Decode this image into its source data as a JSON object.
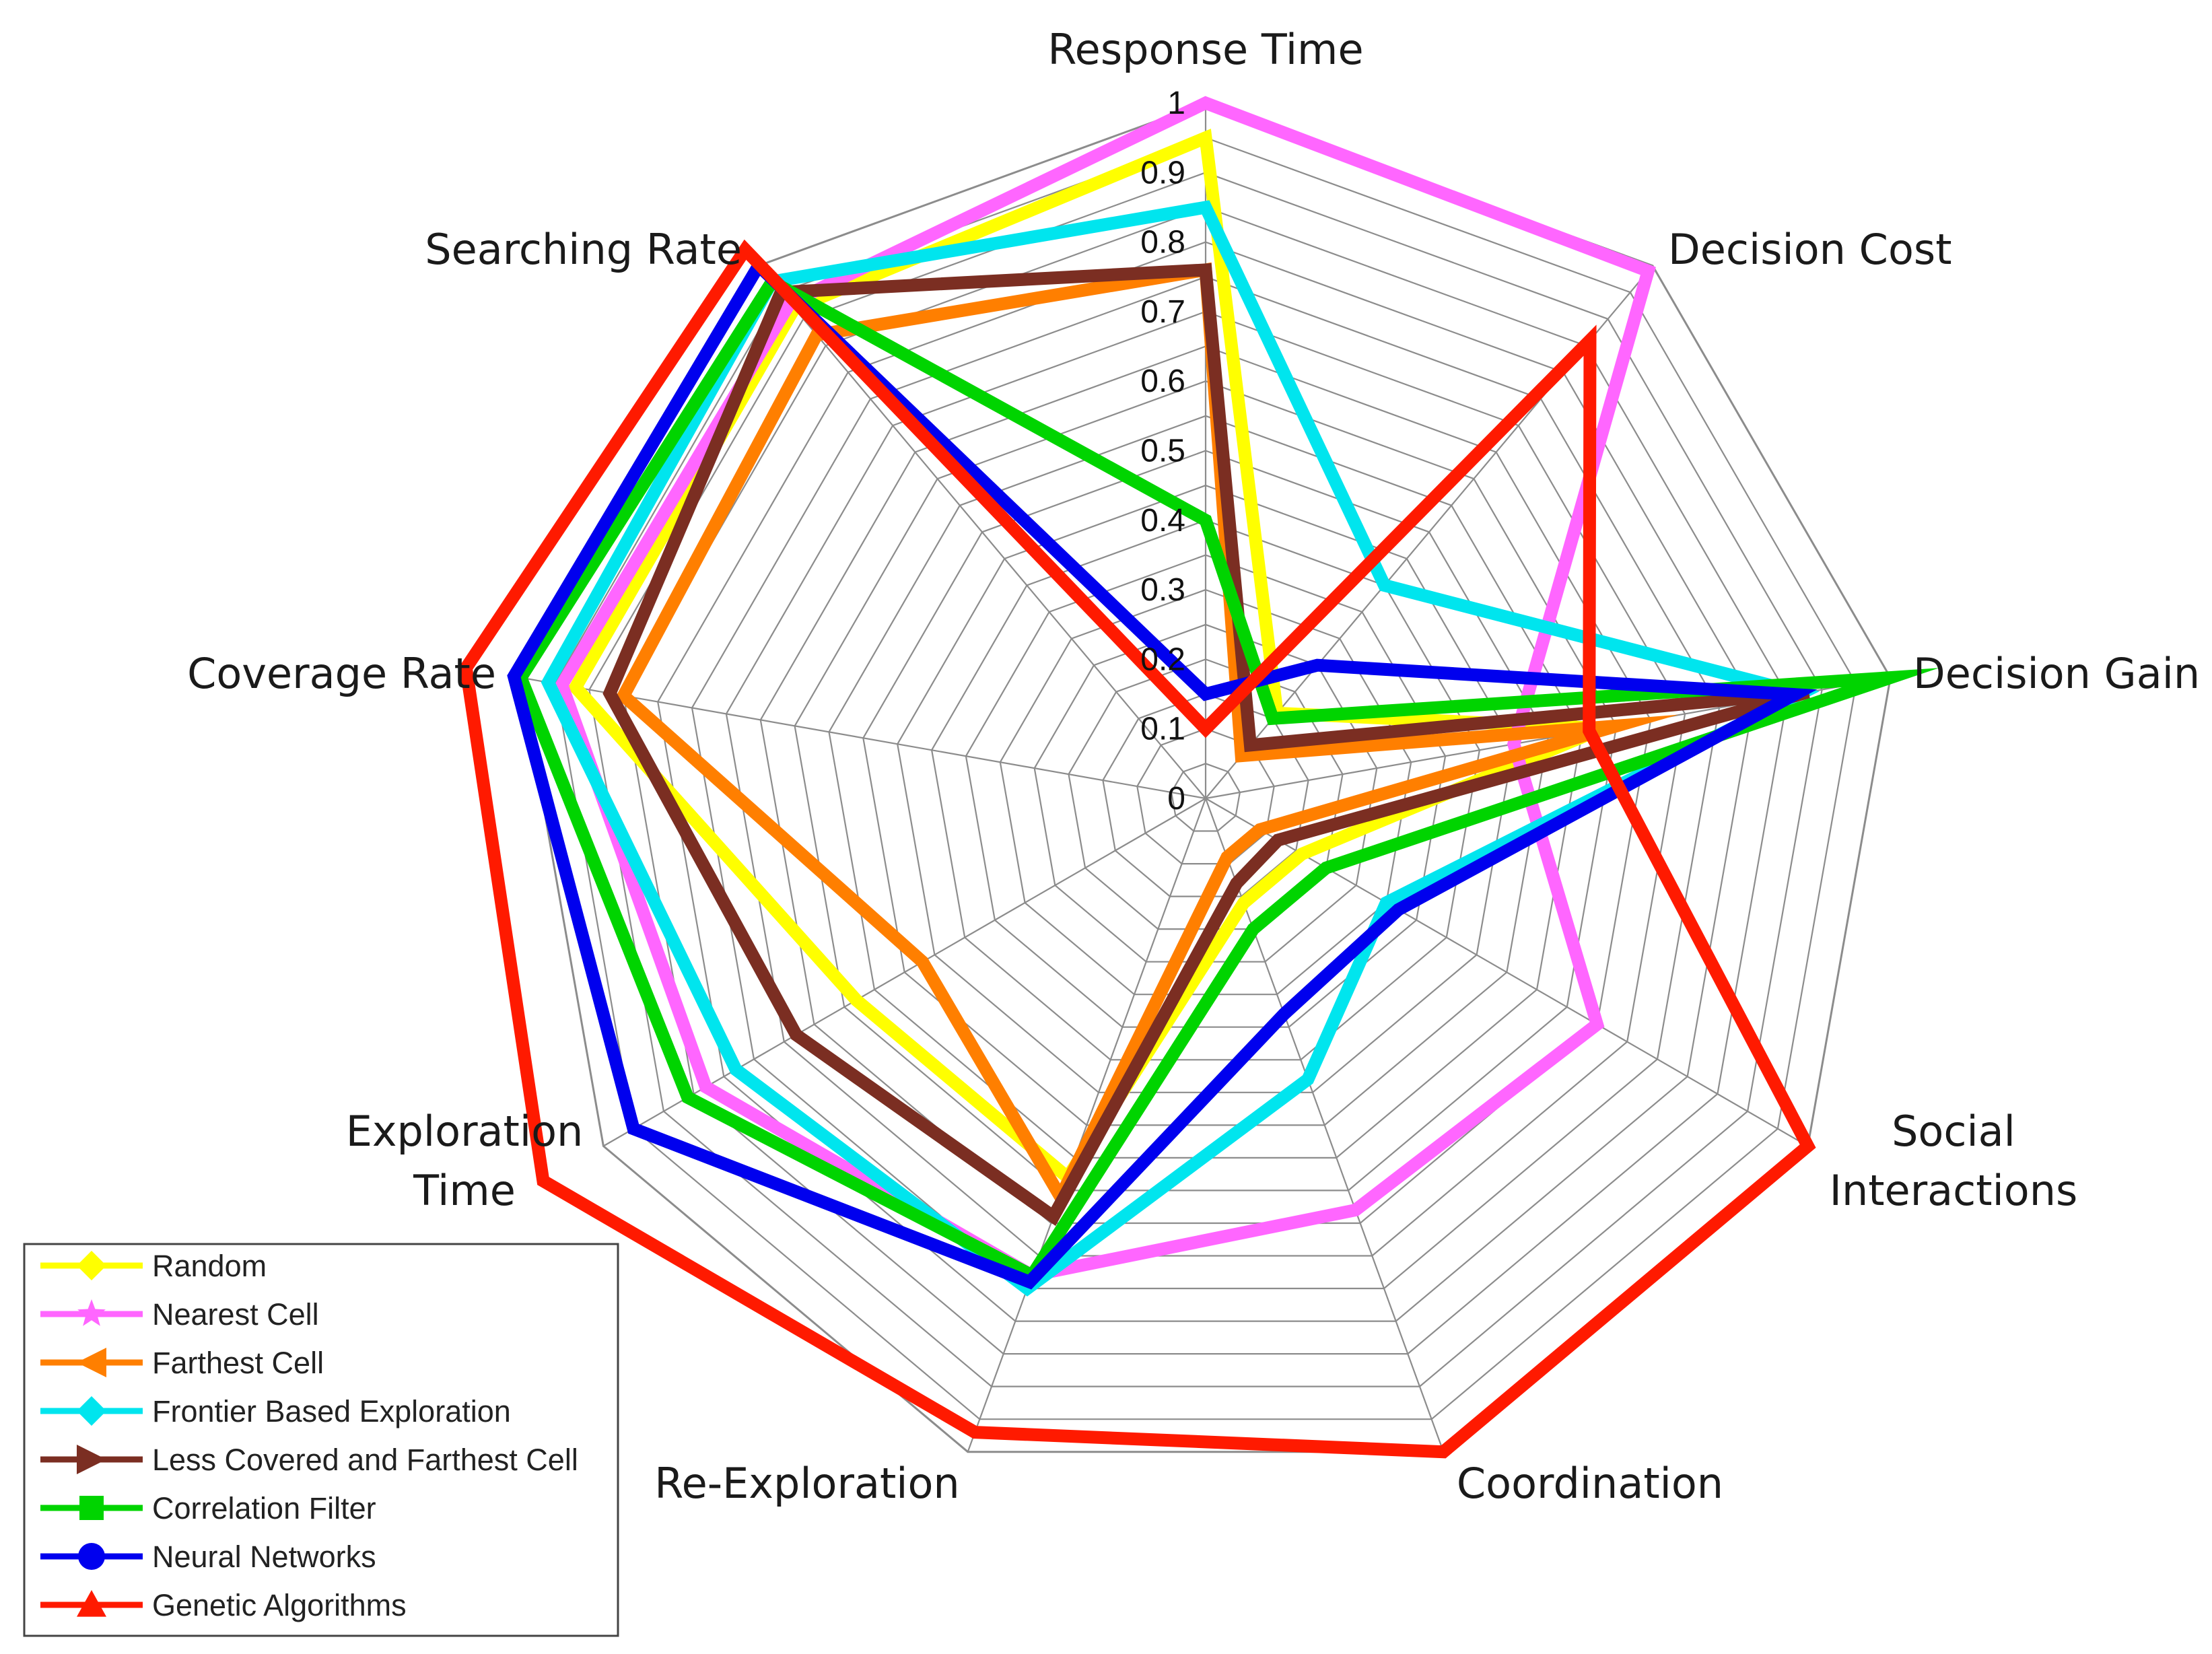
{
  "chart_data": {
    "type": "radar",
    "axes": [
      "Response Time",
      "Decision Cost",
      "Decision Gain",
      "Social Interactions",
      "Coordination",
      "Re-Exploration",
      "Exploration Time",
      "Coverage Rate",
      "Searching Rate"
    ],
    "axis_labels": [
      [
        "Response Time"
      ],
      [
        "Decision Cost"
      ],
      [
        "Decision Gain"
      ],
      [
        "Social",
        "Interactions"
      ],
      [
        "Coordination"
      ],
      [
        "Re-Exploration"
      ],
      [
        "Exploration",
        "Time"
      ],
      [
        "Coverage Rate"
      ],
      [
        "Searching Rate"
      ]
    ],
    "r_range": [
      0,
      1
    ],
    "ticks": [
      "0",
      "0.1",
      "0.2",
      "0.3",
      "0.4",
      "0.5",
      "0.6",
      "0.7",
      "0.8",
      "0.9",
      "1"
    ],
    "legend_position": "bottom-left",
    "series": [
      {
        "name": "Random",
        "color": "#FFFF00",
        "marker": "diamond",
        "values": [
          0.95,
          0.16,
          0.58,
          0.16,
          0.16,
          0.58,
          0.58,
          0.92,
          0.92
        ]
      },
      {
        "name": "Nearest Cell",
        "color": "#FF66FF",
        "marker": "star",
        "values": [
          1.0,
          0.99,
          0.45,
          0.65,
          0.63,
          0.73,
          0.83,
          0.94,
          0.93
        ]
      },
      {
        "name": "Farthest Cell",
        "color": "#FF7F00",
        "marker": "triangle-left",
        "values": [
          0.76,
          0.08,
          0.6,
          0.09,
          0.09,
          0.61,
          0.47,
          0.85,
          0.87
        ]
      },
      {
        "name": "Frontier Based Exploration",
        "color": "#00E5EE",
        "marker": "diamond",
        "values": [
          0.85,
          0.4,
          0.87,
          0.3,
          0.43,
          0.75,
          0.78,
          0.96,
          0.97
        ]
      },
      {
        "name": "Less Covered and Farthest Cell",
        "color": "#7B2E22",
        "marker": "triangle-right",
        "values": [
          0.76,
          0.1,
          0.88,
          0.12,
          0.13,
          0.64,
          0.68,
          0.87,
          0.95
        ]
      },
      {
        "name": "Correlation Filter",
        "color": "#00D400",
        "marker": "square",
        "values": [
          0.4,
          0.15,
          1.0,
          0.2,
          0.2,
          0.73,
          0.86,
          1.0,
          0.97
        ]
      },
      {
        "name": "Neural Networks",
        "color": "#0000EE",
        "marker": "circle",
        "values": [
          0.15,
          0.25,
          0.86,
          0.32,
          0.33,
          0.74,
          0.95,
          1.01,
          1.0
        ]
      },
      {
        "name": "Genetic Algorithms",
        "color": "#FF1A00",
        "marker": "triangle-up",
        "values": [
          0.1,
          0.86,
          0.56,
          1.0,
          1.0,
          0.97,
          1.1,
          1.08,
          1.03
        ]
      }
    ]
  }
}
